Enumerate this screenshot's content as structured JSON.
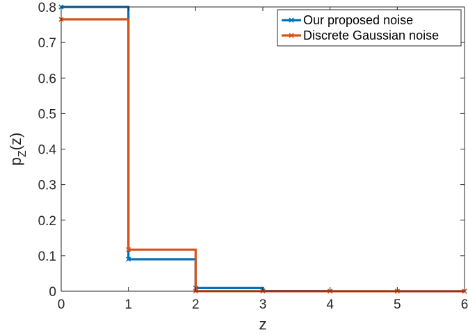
{
  "chart_data": {
    "type": "line",
    "step": "post",
    "xlabel": "z",
    "ylabel": {
      "base": "p",
      "sub": "Z",
      "tail": "(z)"
    },
    "xlim": [
      0,
      6
    ],
    "ylim": [
      0,
      0.8
    ],
    "xticks": [
      0,
      1,
      2,
      3,
      4,
      5,
      6
    ],
    "yticks": [
      0,
      0.1,
      0.2,
      0.3,
      0.4,
      0.5,
      0.6,
      0.7,
      0.8
    ],
    "xtick_labels": [
      "0",
      "1",
      "2",
      "3",
      "4",
      "5",
      "6"
    ],
    "ytick_labels": [
      "0",
      "0.1",
      "0.2",
      "0.3",
      "0.4",
      "0.5",
      "0.6",
      "0.7",
      "0.8"
    ],
    "grid": false,
    "legend_position": "top-right",
    "series": [
      {
        "name": "Our proposed noise",
        "color": "#0072BD",
        "marker": "x",
        "x": [
          0,
          1,
          2,
          3,
          4,
          5,
          6
        ],
        "y": [
          0.8,
          0.09,
          0.009,
          0.0009,
          0.0001,
          1e-05,
          0.0
        ]
      },
      {
        "name": "Discrete Gaussian noise",
        "color": "#D95319",
        "marker": "x",
        "x": [
          0,
          1,
          2,
          3,
          4,
          5,
          6
        ],
        "y": [
          0.765,
          0.117,
          0.0003,
          0.0,
          0.0,
          0.0,
          0.0
        ]
      }
    ]
  }
}
